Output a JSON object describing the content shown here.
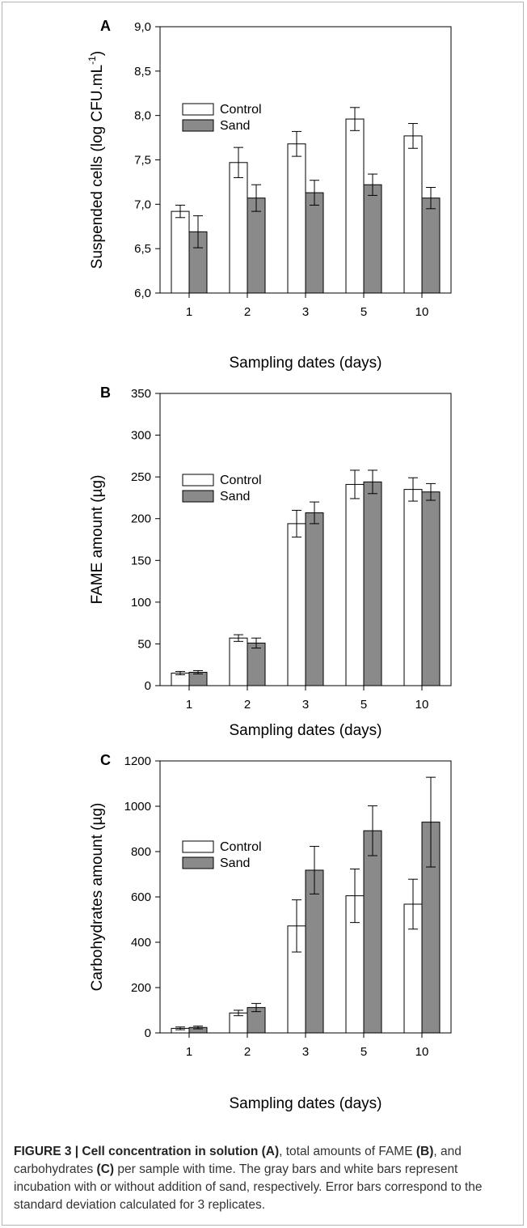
{
  "chart_data": [
    {
      "type": "bar",
      "panel": "A",
      "categories": [
        "1",
        "2",
        "3",
        "5",
        "10"
      ],
      "series": [
        {
          "name": "Control",
          "values": [
            6.92,
            7.47,
            7.68,
            7.96,
            7.77
          ],
          "errors": [
            0.07,
            0.17,
            0.14,
            0.13,
            0.14
          ],
          "color": "#ffffff"
        },
        {
          "name": "Sand",
          "values": [
            6.69,
            7.07,
            7.13,
            7.22,
            7.07
          ],
          "errors": [
            0.18,
            0.15,
            0.14,
            0.12,
            0.12
          ],
          "color": "#8a8a8a"
        }
      ],
      "xlabel": "Sampling dates (days)",
      "ylabel_main": "Suspended cells (log CFU.mL",
      "ylabel_sup": "-1",
      "ylabel_end": ")",
      "ylim": [
        6.0,
        9.0
      ],
      "yticks": [
        "6,0",
        "6,5",
        "7,0",
        "7,5",
        "8,0",
        "8,5",
        "9,0"
      ],
      "legend": [
        "Control",
        "Sand"
      ],
      "legend_position": "upper-left"
    },
    {
      "type": "bar",
      "panel": "B",
      "categories": [
        "1",
        "2",
        "3",
        "5",
        "10"
      ],
      "series": [
        {
          "name": "Control",
          "values": [
            15,
            57,
            194,
            241,
            235
          ],
          "errors": [
            2,
            4,
            16,
            17,
            14
          ],
          "color": "#ffffff"
        },
        {
          "name": "Sand",
          "values": [
            16,
            51,
            207,
            244,
            232
          ],
          "errors": [
            2,
            6,
            13,
            14,
            10
          ],
          "color": "#8a8a8a"
        }
      ],
      "xlabel": "Sampling dates (days)",
      "ylabel": "FAME amount (µg)",
      "ylim": [
        0,
        350
      ],
      "yticks": [
        "0",
        "50",
        "100",
        "150",
        "200",
        "250",
        "300",
        "350"
      ],
      "legend": [
        "Control",
        "Sand"
      ],
      "legend_position": "upper-left"
    },
    {
      "type": "bar",
      "panel": "C",
      "categories": [
        "1",
        "2",
        "3",
        "5",
        "10"
      ],
      "series": [
        {
          "name": "Control",
          "values": [
            20,
            88,
            472,
            605,
            568
          ],
          "errors": [
            6,
            12,
            115,
            118,
            110
          ],
          "color": "#ffffff"
        },
        {
          "name": "Sand",
          "values": [
            24,
            112,
            718,
            892,
            930
          ],
          "errors": [
            6,
            18,
            105,
            110,
            198
          ],
          "color": "#8a8a8a"
        }
      ],
      "xlabel": "Sampling dates (days)",
      "ylabel": "Carbohydrates amount (µg)",
      "ylim": [
        0,
        1200
      ],
      "yticks": [
        "0",
        "200",
        "400",
        "600",
        "800",
        "1000",
        "1200"
      ],
      "legend": [
        "Control",
        "Sand"
      ],
      "legend_position": "upper-left"
    }
  ],
  "caption": {
    "prefix": "FIGURE 3 | Cell concentration in solution ",
    "a": "(A)",
    "t1": ", total amounts of FAME ",
    "b": "(B)",
    "t2": ", and carbohydrates ",
    "c": "(C)",
    "t3": " per sample with time. The gray bars and white bars represent incubation with or without addition of sand, respectively. Error bars correspond to the standard deviation calculated for 3 replicates."
  }
}
